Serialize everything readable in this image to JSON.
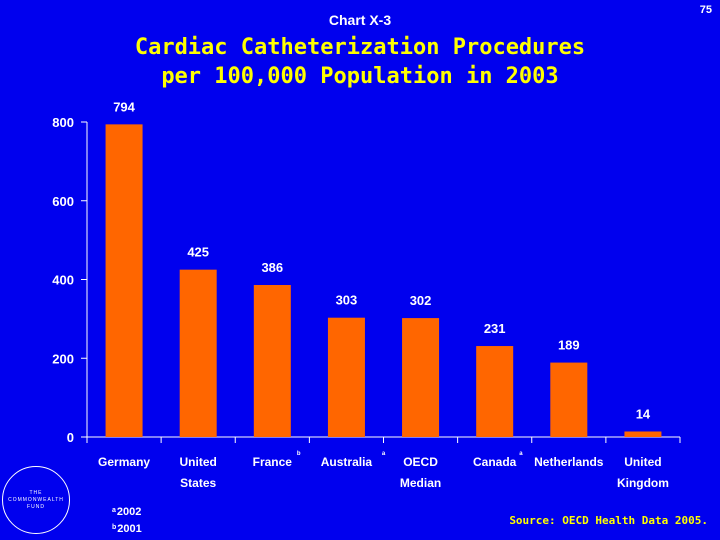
{
  "page_number": "75",
  "chart_label": "Chart X-3",
  "title_line1": "Cardiac Catheterization Procedures",
  "title_line2": "per 100,000 Population in 2003",
  "logo": {
    "line1": "THE",
    "line2": "COMMONWEALTH",
    "line3": "FUND"
  },
  "footnotes": [
    {
      "mark": "a",
      "text": "2002"
    },
    {
      "mark": "b",
      "text": "2001"
    }
  ],
  "source": "Source: OECD Health Data 2005.",
  "colors": {
    "background": "#0000ee",
    "bar": "#ff6600",
    "title": "#ffff00",
    "text": "#ffffff"
  },
  "chart_data": {
    "type": "bar",
    "title": "Cardiac Catheterization Procedures per 100,000 Population in 2003",
    "xlabel": "",
    "ylabel": "",
    "ylim": [
      0,
      800
    ],
    "yticks": [
      0,
      200,
      400,
      600,
      800
    ],
    "grid": false,
    "categories": [
      {
        "lines": [
          "Germany"
        ],
        "mark": "",
        "value": 794
      },
      {
        "lines": [
          "United",
          "States"
        ],
        "mark": "",
        "value": 425
      },
      {
        "lines": [
          "France"
        ],
        "mark": "b",
        "value": 386
      },
      {
        "lines": [
          "Australia"
        ],
        "mark": "a",
        "value": 303
      },
      {
        "lines": [
          "OECD",
          "Median"
        ],
        "mark": "",
        "value": 302
      },
      {
        "lines": [
          "Canada"
        ],
        "mark": "a",
        "value": 231
      },
      {
        "lines": [
          "Netherlands"
        ],
        "mark": "",
        "value": 189
      },
      {
        "lines": [
          "United",
          "Kingdom"
        ],
        "mark": "",
        "value": 14
      }
    ]
  }
}
